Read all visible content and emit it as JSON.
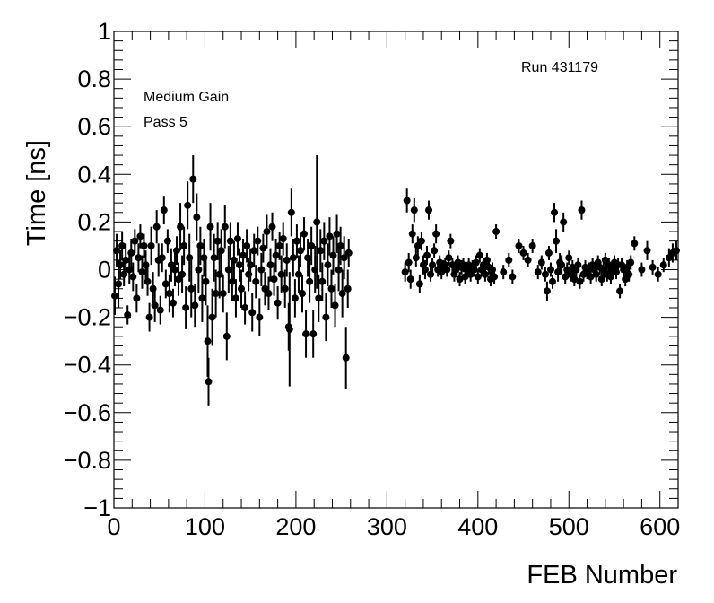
{
  "chart_data": {
    "type": "scatter",
    "xlabel": "FEB Number",
    "ylabel": "Time [ns]",
    "xlim": [
      0,
      620
    ],
    "ylim": [
      -1,
      1
    ],
    "x_major_ticks": [
      0,
      100,
      200,
      300,
      400,
      500,
      600
    ],
    "y_major_ticks": [
      -1,
      -0.8,
      -0.6,
      -0.4,
      -0.2,
      0,
      0.2,
      0.4,
      0.6,
      0.8,
      1
    ],
    "x_tick_labels": [
      "0",
      "100",
      "200",
      "300",
      "400",
      "500",
      "600"
    ],
    "y_tick_labels": [
      "−1",
      "−0.8",
      "−0.6",
      "−0.4",
      "−0.2",
      "0",
      "0.2",
      "0.4",
      "0.6",
      "0.8",
      "1"
    ],
    "grid": false,
    "annotations": {
      "gain": "Medium Gain",
      "pass": "Pass 5",
      "run": "Run 431179"
    },
    "marker_color": "#000000",
    "points": [
      {
        "x": 1,
        "y": -0.11,
        "e": 0.08
      },
      {
        "x": 3,
        "y": 0.08,
        "e": 0.07
      },
      {
        "x": 5,
        "y": -0.06,
        "e": 0.1
      },
      {
        "x": 7,
        "y": 0.02,
        "e": 0.06
      },
      {
        "x": 9,
        "y": 0.1,
        "e": 0.06
      },
      {
        "x": 11,
        "y": -0.02,
        "e": 0.05
      },
      {
        "x": 13,
        "y": 0.04,
        "e": 0.07
      },
      {
        "x": 15,
        "y": -0.19,
        "e": 0.04
      },
      {
        "x": 17,
        "y": 0.0,
        "e": 0.06
      },
      {
        "x": 19,
        "y": 0.07,
        "e": 0.06
      },
      {
        "x": 21,
        "y": -0.03,
        "e": 0.06
      },
      {
        "x": 23,
        "y": 0.12,
        "e": 0.05
      },
      {
        "x": 25,
        "y": -0.12,
        "e": 0.06
      },
      {
        "x": 27,
        "y": 0.05,
        "e": 0.06
      },
      {
        "x": 29,
        "y": 0.14,
        "e": 0.05
      },
      {
        "x": 31,
        "y": -0.01,
        "e": 0.07
      },
      {
        "x": 33,
        "y": 0.1,
        "e": 0.05
      },
      {
        "x": 35,
        "y": 0.02,
        "e": 0.06
      },
      {
        "x": 37,
        "y": -0.05,
        "e": 0.06
      },
      {
        "x": 39,
        "y": -0.2,
        "e": 0.06
      },
      {
        "x": 41,
        "y": 0.1,
        "e": 0.08
      },
      {
        "x": 43,
        "y": -0.08,
        "e": 0.07
      },
      {
        "x": 45,
        "y": -0.15,
        "e": 0.07
      },
      {
        "x": 47,
        "y": 0.18,
        "e": 0.07
      },
      {
        "x": 49,
        "y": 0.04,
        "e": 0.07
      },
      {
        "x": 51,
        "y": -0.17,
        "e": 0.06
      },
      {
        "x": 53,
        "y": 0.05,
        "e": 0.06
      },
      {
        "x": 55,
        "y": 0.25,
        "e": 0.06
      },
      {
        "x": 57,
        "y": -0.06,
        "e": 0.06
      },
      {
        "x": 59,
        "y": 0.12,
        "e": 0.05
      },
      {
        "x": 61,
        "y": -0.1,
        "e": 0.08
      },
      {
        "x": 63,
        "y": 0.02,
        "e": 0.07
      },
      {
        "x": 65,
        "y": -0.14,
        "e": 0.06
      },
      {
        "x": 67,
        "y": 0.0,
        "e": 0.07
      },
      {
        "x": 69,
        "y": 0.08,
        "e": 0.06
      },
      {
        "x": 71,
        "y": -0.04,
        "e": 0.07
      },
      {
        "x": 73,
        "y": 0.18,
        "e": 0.1
      },
      {
        "x": 75,
        "y": -0.02,
        "e": 0.08
      },
      {
        "x": 77,
        "y": 0.1,
        "e": 0.08
      },
      {
        "x": 79,
        "y": -0.16,
        "e": 0.09
      },
      {
        "x": 81,
        "y": 0.27,
        "e": 0.1
      },
      {
        "x": 83,
        "y": 0.05,
        "e": 0.1
      },
      {
        "x": 85,
        "y": -0.08,
        "e": 0.12
      },
      {
        "x": 87,
        "y": 0.38,
        "e": 0.1
      },
      {
        "x": 89,
        "y": -0.15,
        "e": 0.09
      },
      {
        "x": 91,
        "y": 0.22,
        "e": 0.1
      },
      {
        "x": 93,
        "y": 0.0,
        "e": 0.1
      },
      {
        "x": 95,
        "y": 0.1,
        "e": 0.08
      },
      {
        "x": 97,
        "y": -0.12,
        "e": 0.1
      },
      {
        "x": 99,
        "y": 0.05,
        "e": 0.08
      },
      {
        "x": 101,
        "y": -0.05,
        "e": 0.1
      },
      {
        "x": 103,
        "y": -0.3,
        "e": 0.15
      },
      {
        "x": 104,
        "y": -0.47,
        "e": 0.1
      },
      {
        "x": 106,
        "y": 0.18,
        "e": 0.1
      },
      {
        "x": 108,
        "y": -0.2,
        "e": 0.12
      },
      {
        "x": 110,
        "y": 0.05,
        "e": 0.1
      },
      {
        "x": 112,
        "y": -0.1,
        "e": 0.1
      },
      {
        "x": 114,
        "y": 0.12,
        "e": 0.08
      },
      {
        "x": 116,
        "y": -0.02,
        "e": 0.1
      },
      {
        "x": 118,
        "y": 0.08,
        "e": 0.09
      },
      {
        "x": 120,
        "y": -0.1,
        "e": 0.08
      },
      {
        "x": 122,
        "y": 0.18,
        "e": 0.09
      },
      {
        "x": 124,
        "y": -0.28,
        "e": 0.1
      },
      {
        "x": 126,
        "y": 0.0,
        "e": 0.1
      },
      {
        "x": 128,
        "y": 0.12,
        "e": 0.08
      },
      {
        "x": 130,
        "y": -0.05,
        "e": 0.08
      },
      {
        "x": 132,
        "y": 0.04,
        "e": 0.08
      },
      {
        "x": 134,
        "y": -0.12,
        "e": 0.08
      },
      {
        "x": 136,
        "y": 0.13,
        "e": 0.07
      },
      {
        "x": 138,
        "y": 0.02,
        "e": 0.07
      },
      {
        "x": 140,
        "y": -0.08,
        "e": 0.08
      },
      {
        "x": 142,
        "y": 0.06,
        "e": 0.07
      },
      {
        "x": 144,
        "y": -0.16,
        "e": 0.07
      },
      {
        "x": 146,
        "y": 0.1,
        "e": 0.07
      },
      {
        "x": 148,
        "y": -0.02,
        "e": 0.07
      },
      {
        "x": 150,
        "y": 0.02,
        "e": 0.07
      },
      {
        "x": 152,
        "y": -0.18,
        "e": 0.08
      },
      {
        "x": 154,
        "y": 0.08,
        "e": 0.07
      },
      {
        "x": 156,
        "y": -0.05,
        "e": 0.07
      },
      {
        "x": 158,
        "y": 0.12,
        "e": 0.06
      },
      {
        "x": 160,
        "y": -0.2,
        "e": 0.08
      },
      {
        "x": 162,
        "y": 0.0,
        "e": 0.07
      },
      {
        "x": 164,
        "y": 0.09,
        "e": 0.06
      },
      {
        "x": 166,
        "y": -0.08,
        "e": 0.07
      },
      {
        "x": 168,
        "y": 0.16,
        "e": 0.07
      },
      {
        "x": 170,
        "y": -0.1,
        "e": 0.07
      },
      {
        "x": 172,
        "y": 0.02,
        "e": 0.07
      },
      {
        "x": 174,
        "y": 0.18,
        "e": 0.06
      },
      {
        "x": 176,
        "y": -0.04,
        "e": 0.07
      },
      {
        "x": 178,
        "y": 0.06,
        "e": 0.07
      },
      {
        "x": 180,
        "y": -0.14,
        "e": 0.07
      },
      {
        "x": 182,
        "y": 0.1,
        "e": 0.06
      },
      {
        "x": 184,
        "y": -0.02,
        "e": 0.08
      },
      {
        "x": 186,
        "y": 0.13,
        "e": 0.07
      },
      {
        "x": 188,
        "y": -0.08,
        "e": 0.08
      },
      {
        "x": 190,
        "y": 0.04,
        "e": 0.07
      },
      {
        "x": 192,
        "y": -0.24,
        "e": 0.1
      },
      {
        "x": 193,
        "y": -0.25,
        "e": 0.24
      },
      {
        "x": 195,
        "y": 0.24,
        "e": 0.1
      },
      {
        "x": 197,
        "y": 0.05,
        "e": 0.08
      },
      {
        "x": 199,
        "y": -0.12,
        "e": 0.08
      },
      {
        "x": 201,
        "y": 0.12,
        "e": 0.07
      },
      {
        "x": 203,
        "y": -0.02,
        "e": 0.08
      },
      {
        "x": 205,
        "y": 0.08,
        "e": 0.07
      },
      {
        "x": 207,
        "y": -0.1,
        "e": 0.08
      },
      {
        "x": 209,
        "y": 0.15,
        "e": 0.07
      },
      {
        "x": 211,
        "y": -0.27,
        "e": 0.1
      },
      {
        "x": 213,
        "y": 0.05,
        "e": 0.08
      },
      {
        "x": 215,
        "y": -0.05,
        "e": 0.09
      },
      {
        "x": 217,
        "y": 0.1,
        "e": 0.08
      },
      {
        "x": 219,
        "y": -0.27,
        "e": 0.1
      },
      {
        "x": 221,
        "y": 0.0,
        "e": 0.1
      },
      {
        "x": 223,
        "y": 0.2,
        "e": 0.28
      },
      {
        "x": 225,
        "y": -0.12,
        "e": 0.1
      },
      {
        "x": 227,
        "y": 0.08,
        "e": 0.09
      },
      {
        "x": 229,
        "y": -0.05,
        "e": 0.08
      },
      {
        "x": 231,
        "y": 0.12,
        "e": 0.08
      },
      {
        "x": 233,
        "y": -0.2,
        "e": 0.1
      },
      {
        "x": 235,
        "y": 0.02,
        "e": 0.09
      },
      {
        "x": 237,
        "y": 0.14,
        "e": 0.08
      },
      {
        "x": 239,
        "y": -0.08,
        "e": 0.08
      },
      {
        "x": 241,
        "y": 0.06,
        "e": 0.08
      },
      {
        "x": 243,
        "y": -0.15,
        "e": 0.09
      },
      {
        "x": 245,
        "y": 0.15,
        "e": 0.08
      },
      {
        "x": 247,
        "y": 0.0,
        "e": 0.09
      },
      {
        "x": 249,
        "y": 0.1,
        "e": 0.08
      },
      {
        "x": 251,
        "y": -0.1,
        "e": 0.1
      },
      {
        "x": 253,
        "y": 0.05,
        "e": 0.09
      },
      {
        "x": 255,
        "y": -0.37,
        "e": 0.13
      },
      {
        "x": 257,
        "y": -0.08,
        "e": 0.08
      },
      {
        "x": 258,
        "y": 0.07,
        "e": 0.06
      },
      {
        "x": 320,
        "y": -0.01,
        "e": 0.04
      },
      {
        "x": 322,
        "y": 0.29,
        "e": 0.05
      },
      {
        "x": 324,
        "y": 0.03,
        "e": 0.04
      },
      {
        "x": 326,
        "y": -0.04,
        "e": 0.04
      },
      {
        "x": 328,
        "y": 0.15,
        "e": 0.04
      },
      {
        "x": 330,
        "y": 0.25,
        "e": 0.05
      },
      {
        "x": 332,
        "y": 0.05,
        "e": 0.04
      },
      {
        "x": 334,
        "y": 0.1,
        "e": 0.04
      },
      {
        "x": 336,
        "y": -0.06,
        "e": 0.04
      },
      {
        "x": 338,
        "y": 0.12,
        "e": 0.04
      },
      {
        "x": 340,
        "y": 0.02,
        "e": 0.04
      },
      {
        "x": 342,
        "y": 0.0,
        "e": 0.04
      },
      {
        "x": 344,
        "y": 0.06,
        "e": 0.04
      },
      {
        "x": 346,
        "y": 0.25,
        "e": 0.04
      },
      {
        "x": 348,
        "y": -0.02,
        "e": 0.03
      },
      {
        "x": 350,
        "y": 0.02,
        "e": 0.03
      },
      {
        "x": 352,
        "y": 0.08,
        "e": 0.03
      },
      {
        "x": 354,
        "y": 0.15,
        "e": 0.04
      },
      {
        "x": 356,
        "y": 0.0,
        "e": 0.03
      },
      {
        "x": 358,
        "y": 0.03,
        "e": 0.03
      },
      {
        "x": 360,
        "y": -0.01,
        "e": 0.03
      },
      {
        "x": 362,
        "y": 0.01,
        "e": 0.03
      },
      {
        "x": 364,
        "y": 0.02,
        "e": 0.03
      },
      {
        "x": 366,
        "y": 0.0,
        "e": 0.03
      },
      {
        "x": 368,
        "y": 0.05,
        "e": 0.03
      },
      {
        "x": 370,
        "y": 0.12,
        "e": 0.03
      },
      {
        "x": 372,
        "y": 0.02,
        "e": 0.03
      },
      {
        "x": 374,
        "y": -0.02,
        "e": 0.03
      },
      {
        "x": 376,
        "y": 0.0,
        "e": 0.03
      },
      {
        "x": 378,
        "y": 0.03,
        "e": 0.03
      },
      {
        "x": 380,
        "y": -0.04,
        "e": 0.03
      },
      {
        "x": 382,
        "y": 0.01,
        "e": 0.03
      },
      {
        "x": 384,
        "y": 0.02,
        "e": 0.03
      },
      {
        "x": 386,
        "y": -0.03,
        "e": 0.03
      },
      {
        "x": 388,
        "y": 0.0,
        "e": 0.03
      },
      {
        "x": 390,
        "y": 0.02,
        "e": 0.03
      },
      {
        "x": 392,
        "y": -0.02,
        "e": 0.03
      },
      {
        "x": 394,
        "y": 0.01,
        "e": 0.03
      },
      {
        "x": 396,
        "y": 0.0,
        "e": 0.03
      },
      {
        "x": 398,
        "y": 0.03,
        "e": 0.03
      },
      {
        "x": 400,
        "y": -0.03,
        "e": 0.03
      },
      {
        "x": 402,
        "y": 0.06,
        "e": 0.03
      },
      {
        "x": 404,
        "y": 0.0,
        "e": 0.03
      },
      {
        "x": 406,
        "y": 0.02,
        "e": 0.03
      },
      {
        "x": 408,
        "y": -0.02,
        "e": 0.03
      },
      {
        "x": 410,
        "y": 0.04,
        "e": 0.03
      },
      {
        "x": 412,
        "y": 0.01,
        "e": 0.03
      },
      {
        "x": 414,
        "y": -0.04,
        "e": 0.03
      },
      {
        "x": 416,
        "y": 0.0,
        "e": 0.03
      },
      {
        "x": 418,
        "y": -0.03,
        "e": 0.03
      },
      {
        "x": 420,
        "y": 0.16,
        "e": 0.03
      },
      {
        "x": 428,
        "y": -0.01,
        "e": 0.03
      },
      {
        "x": 434,
        "y": 0.04,
        "e": 0.03
      },
      {
        "x": 438,
        "y": -0.03,
        "e": 0.03
      },
      {
        "x": 445,
        "y": 0.1,
        "e": 0.03
      },
      {
        "x": 450,
        "y": 0.07,
        "e": 0.03
      },
      {
        "x": 455,
        "y": 0.04,
        "e": 0.03
      },
      {
        "x": 460,
        "y": 0.1,
        "e": 0.03
      },
      {
        "x": 466,
        "y": -0.01,
        "e": 0.03
      },
      {
        "x": 470,
        "y": 0.03,
        "e": 0.03
      },
      {
        "x": 474,
        "y": -0.02,
        "e": 0.03
      },
      {
        "x": 476,
        "y": -0.09,
        "e": 0.04
      },
      {
        "x": 478,
        "y": 0.07,
        "e": 0.03
      },
      {
        "x": 480,
        "y": 0.0,
        "e": 0.03
      },
      {
        "x": 482,
        "y": -0.05,
        "e": 0.03
      },
      {
        "x": 484,
        "y": 0.24,
        "e": 0.04
      },
      {
        "x": 486,
        "y": 0.12,
        "e": 0.05
      },
      {
        "x": 488,
        "y": -0.01,
        "e": 0.04
      },
      {
        "x": 490,
        "y": 0.03,
        "e": 0.04
      },
      {
        "x": 492,
        "y": 0.02,
        "e": 0.04
      },
      {
        "x": 494,
        "y": 0.2,
        "e": 0.04
      },
      {
        "x": 496,
        "y": -0.03,
        "e": 0.03
      },
      {
        "x": 498,
        "y": 0.0,
        "e": 0.03
      },
      {
        "x": 500,
        "y": 0.05,
        "e": 0.03
      },
      {
        "x": 502,
        "y": -0.02,
        "e": 0.03
      },
      {
        "x": 504,
        "y": 0.01,
        "e": 0.03
      },
      {
        "x": 506,
        "y": -0.04,
        "e": 0.03
      },
      {
        "x": 508,
        "y": 0.0,
        "e": 0.03
      },
      {
        "x": 510,
        "y": 0.02,
        "e": 0.03
      },
      {
        "x": 512,
        "y": -0.05,
        "e": 0.03
      },
      {
        "x": 514,
        "y": 0.25,
        "e": 0.04
      },
      {
        "x": 516,
        "y": -0.02,
        "e": 0.03
      },
      {
        "x": 518,
        "y": 0.01,
        "e": 0.03
      },
      {
        "x": 520,
        "y": -0.01,
        "e": 0.03
      },
      {
        "x": 522,
        "y": 0.0,
        "e": 0.03
      },
      {
        "x": 524,
        "y": -0.03,
        "e": 0.03
      },
      {
        "x": 526,
        "y": 0.02,
        "e": 0.03
      },
      {
        "x": 528,
        "y": 0.0,
        "e": 0.03
      },
      {
        "x": 530,
        "y": -0.02,
        "e": 0.03
      },
      {
        "x": 532,
        "y": 0.03,
        "e": 0.03
      },
      {
        "x": 534,
        "y": 0.01,
        "e": 0.03
      },
      {
        "x": 536,
        "y": -0.04,
        "e": 0.03
      },
      {
        "x": 538,
        "y": 0.0,
        "e": 0.03
      },
      {
        "x": 540,
        "y": 0.04,
        "e": 0.03
      },
      {
        "x": 542,
        "y": -0.02,
        "e": 0.03
      },
      {
        "x": 544,
        "y": 0.02,
        "e": 0.03
      },
      {
        "x": 546,
        "y": -0.03,
        "e": 0.03
      },
      {
        "x": 548,
        "y": 0.0,
        "e": 0.03
      },
      {
        "x": 550,
        "y": 0.03,
        "e": 0.03
      },
      {
        "x": 552,
        "y": -0.01,
        "e": 0.03
      },
      {
        "x": 554,
        "y": 0.02,
        "e": 0.03
      },
      {
        "x": 556,
        "y": -0.09,
        "e": 0.03
      },
      {
        "x": 558,
        "y": 0.02,
        "e": 0.03
      },
      {
        "x": 560,
        "y": 0.0,
        "e": 0.03
      },
      {
        "x": 562,
        "y": -0.04,
        "e": 0.03
      },
      {
        "x": 564,
        "y": 0.01,
        "e": 0.03
      },
      {
        "x": 566,
        "y": -0.02,
        "e": 0.03
      },
      {
        "x": 568,
        "y": 0.03,
        "e": 0.03
      },
      {
        "x": 572,
        "y": 0.11,
        "e": 0.03
      },
      {
        "x": 580,
        "y": 0.0,
        "e": 0.03
      },
      {
        "x": 586,
        "y": 0.08,
        "e": 0.04
      },
      {
        "x": 592,
        "y": 0.01,
        "e": 0.03
      },
      {
        "x": 598,
        "y": -0.02,
        "e": 0.03
      },
      {
        "x": 604,
        "y": 0.02,
        "e": 0.03
      },
      {
        "x": 610,
        "y": 0.05,
        "e": 0.04
      },
      {
        "x": 614,
        "y": 0.07,
        "e": 0.04
      },
      {
        "x": 618,
        "y": 0.08,
        "e": 0.04
      }
    ]
  }
}
